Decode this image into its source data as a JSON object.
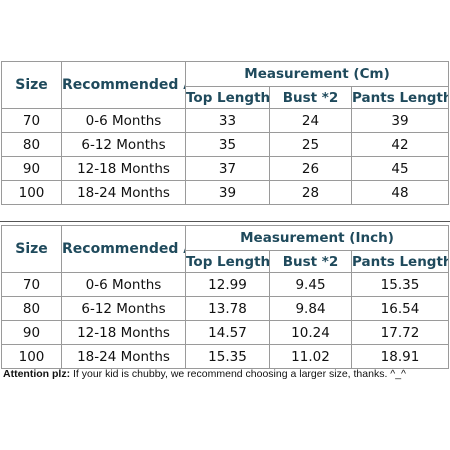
{
  "tables": [
    {
      "headers": {
        "size": "Size",
        "age": "Recommended Age",
        "measurement": "Measurement (Cm)",
        "top_length": "Top Length",
        "bust": "Bust *2",
        "pants_length": "Pants Length"
      },
      "rows": [
        [
          "70",
          "0-6 Months",
          "33",
          "24",
          "39"
        ],
        [
          "80",
          "6-12 Months",
          "35",
          "25",
          "42"
        ],
        [
          "90",
          "12-18 Months",
          "37",
          "26",
          "45"
        ],
        [
          "100",
          "18-24 Months",
          "39",
          "28",
          "48"
        ]
      ]
    },
    {
      "headers": {
        "size": "Size",
        "age": "Recommended Age",
        "measurement": "Measurement (Inch)",
        "top_length": "Top Length",
        "bust": "Bust *2",
        "pants_length": "Pants Length"
      },
      "rows": [
        [
          "70",
          "0-6 Months",
          "12.99",
          "9.45",
          "15.35"
        ],
        [
          "80",
          "6-12 Months",
          "13.78",
          "9.84",
          "16.54"
        ],
        [
          "90",
          "12-18 Months",
          "14.57",
          "10.24",
          "17.72"
        ],
        [
          "100",
          "18-24 Months",
          "15.35",
          "11.02",
          "18.91"
        ]
      ]
    }
  ],
  "note": {
    "label": "Attention plz:",
    "text": " If your kid is chubby, we recommend choosing a larger size, thanks. ^_^"
  }
}
